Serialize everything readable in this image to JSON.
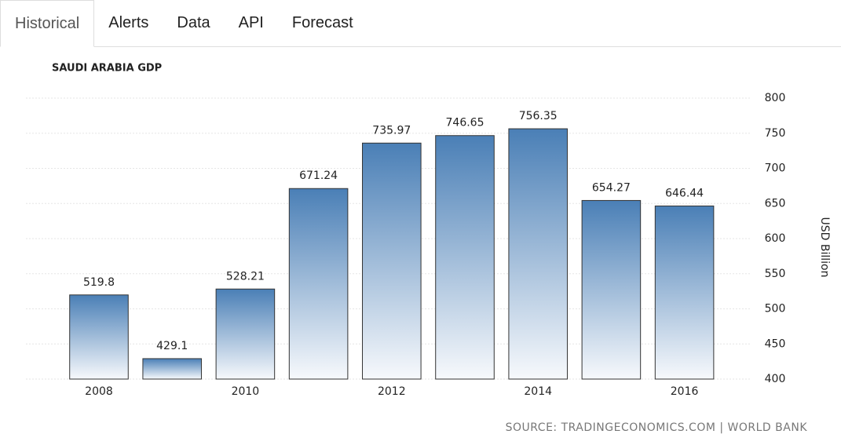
{
  "tabs": [
    "Historical",
    "Alerts",
    "Data",
    "API",
    "Forecast"
  ],
  "chart_data": {
    "type": "bar",
    "title": "SAUDI ARABIA GDP",
    "y_label": "USD Billion",
    "source": "SOURCE: TRADINGECONOMICS.COM | WORLD BANK",
    "categories": [
      "2008",
      null,
      "2010",
      null,
      "2012",
      null,
      "2014",
      null,
      "2016"
    ],
    "values": [
      519.8,
      429.1,
      528.21,
      671.24,
      735.97,
      746.65,
      756.35,
      654.27,
      646.44
    ],
    "color": "#4a7fb6",
    "ylim": [
      400,
      800
    ],
    "yticks": [
      400,
      450,
      500,
      550,
      600,
      650,
      700,
      750,
      800
    ],
    "grid": true
  }
}
